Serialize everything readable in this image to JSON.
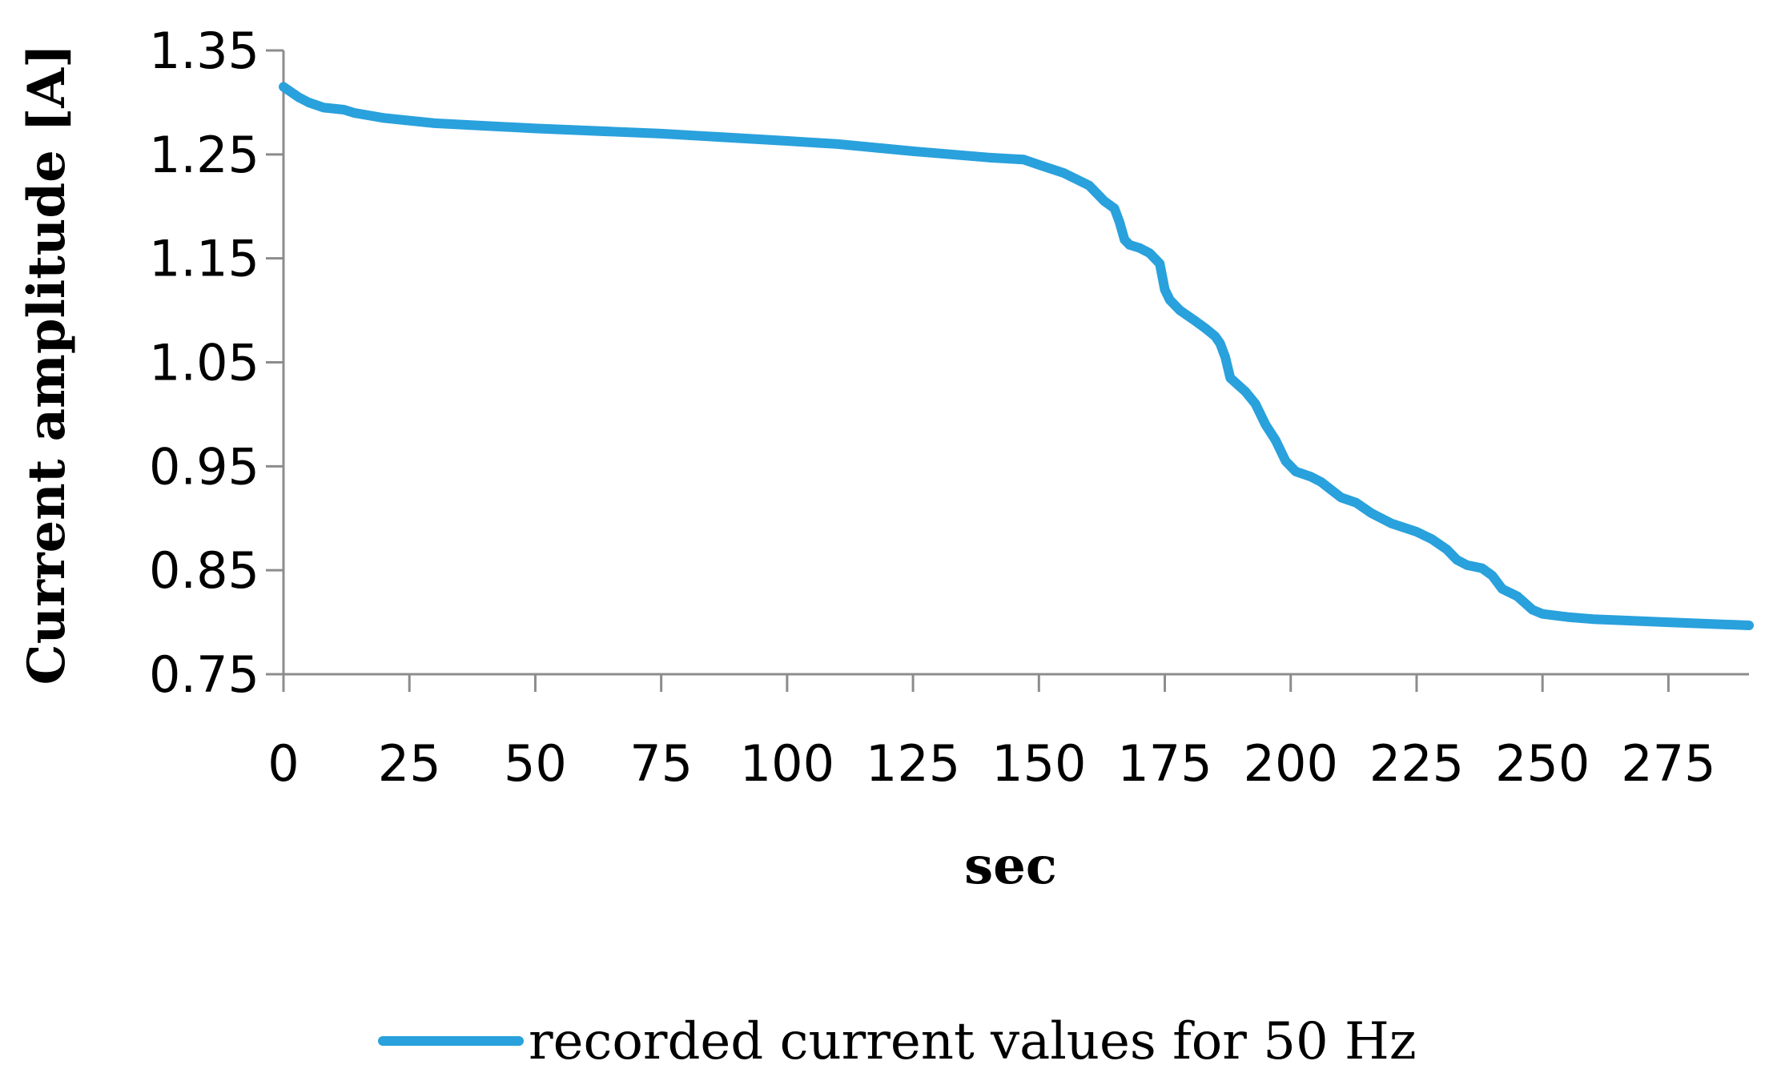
{
  "chart_data": {
    "type": "line",
    "title": "",
    "xlabel": "sec",
    "ylabel": "Current amplitude [A]",
    "xlim": [
      0,
      291
    ],
    "ylim": [
      0.75,
      1.35
    ],
    "x_ticks": [
      "0",
      "25",
      "50",
      "75",
      "100",
      "125",
      "150",
      "175",
      "200",
      "225",
      "250",
      "275"
    ],
    "y_ticks": [
      "1.35",
      "1.25",
      "1.15",
      "1.05",
      "0.95",
      "0.85",
      "0.75"
    ],
    "grid": false,
    "legend_position": "bottom",
    "series": [
      {
        "name": "recorded current values for 50 Hz",
        "color": "#29A1DC",
        "x": [
          0,
          3,
          5,
          8,
          12,
          14,
          20,
          30,
          50,
          75,
          100,
          110,
          125,
          140,
          147,
          150,
          155,
          160,
          163,
          165,
          166,
          167,
          168,
          170,
          172,
          174,
          175,
          176,
          178,
          181,
          183,
          185,
          186,
          187,
          188,
          191,
          193,
          195,
          197,
          199,
          201,
          204,
          206,
          210,
          213,
          216,
          220,
          225,
          228,
          231,
          233,
          235,
          238,
          240,
          242,
          245,
          248,
          250,
          255,
          260,
          275,
          291
        ],
        "y": [
          1.315,
          1.305,
          1.3,
          1.295,
          1.293,
          1.29,
          1.285,
          1.28,
          1.275,
          1.27,
          1.263,
          1.26,
          1.253,
          1.247,
          1.245,
          1.24,
          1.232,
          1.22,
          1.205,
          1.198,
          1.185,
          1.168,
          1.163,
          1.16,
          1.155,
          1.145,
          1.12,
          1.11,
          1.1,
          1.09,
          1.083,
          1.075,
          1.068,
          1.055,
          1.035,
          1.022,
          1.01,
          0.99,
          0.975,
          0.955,
          0.945,
          0.94,
          0.935,
          0.92,
          0.915,
          0.905,
          0.895,
          0.887,
          0.88,
          0.87,
          0.86,
          0.855,
          0.852,
          0.845,
          0.832,
          0.825,
          0.812,
          0.808,
          0.805,
          0.803,
          0.8,
          0.797
        ]
      }
    ]
  }
}
